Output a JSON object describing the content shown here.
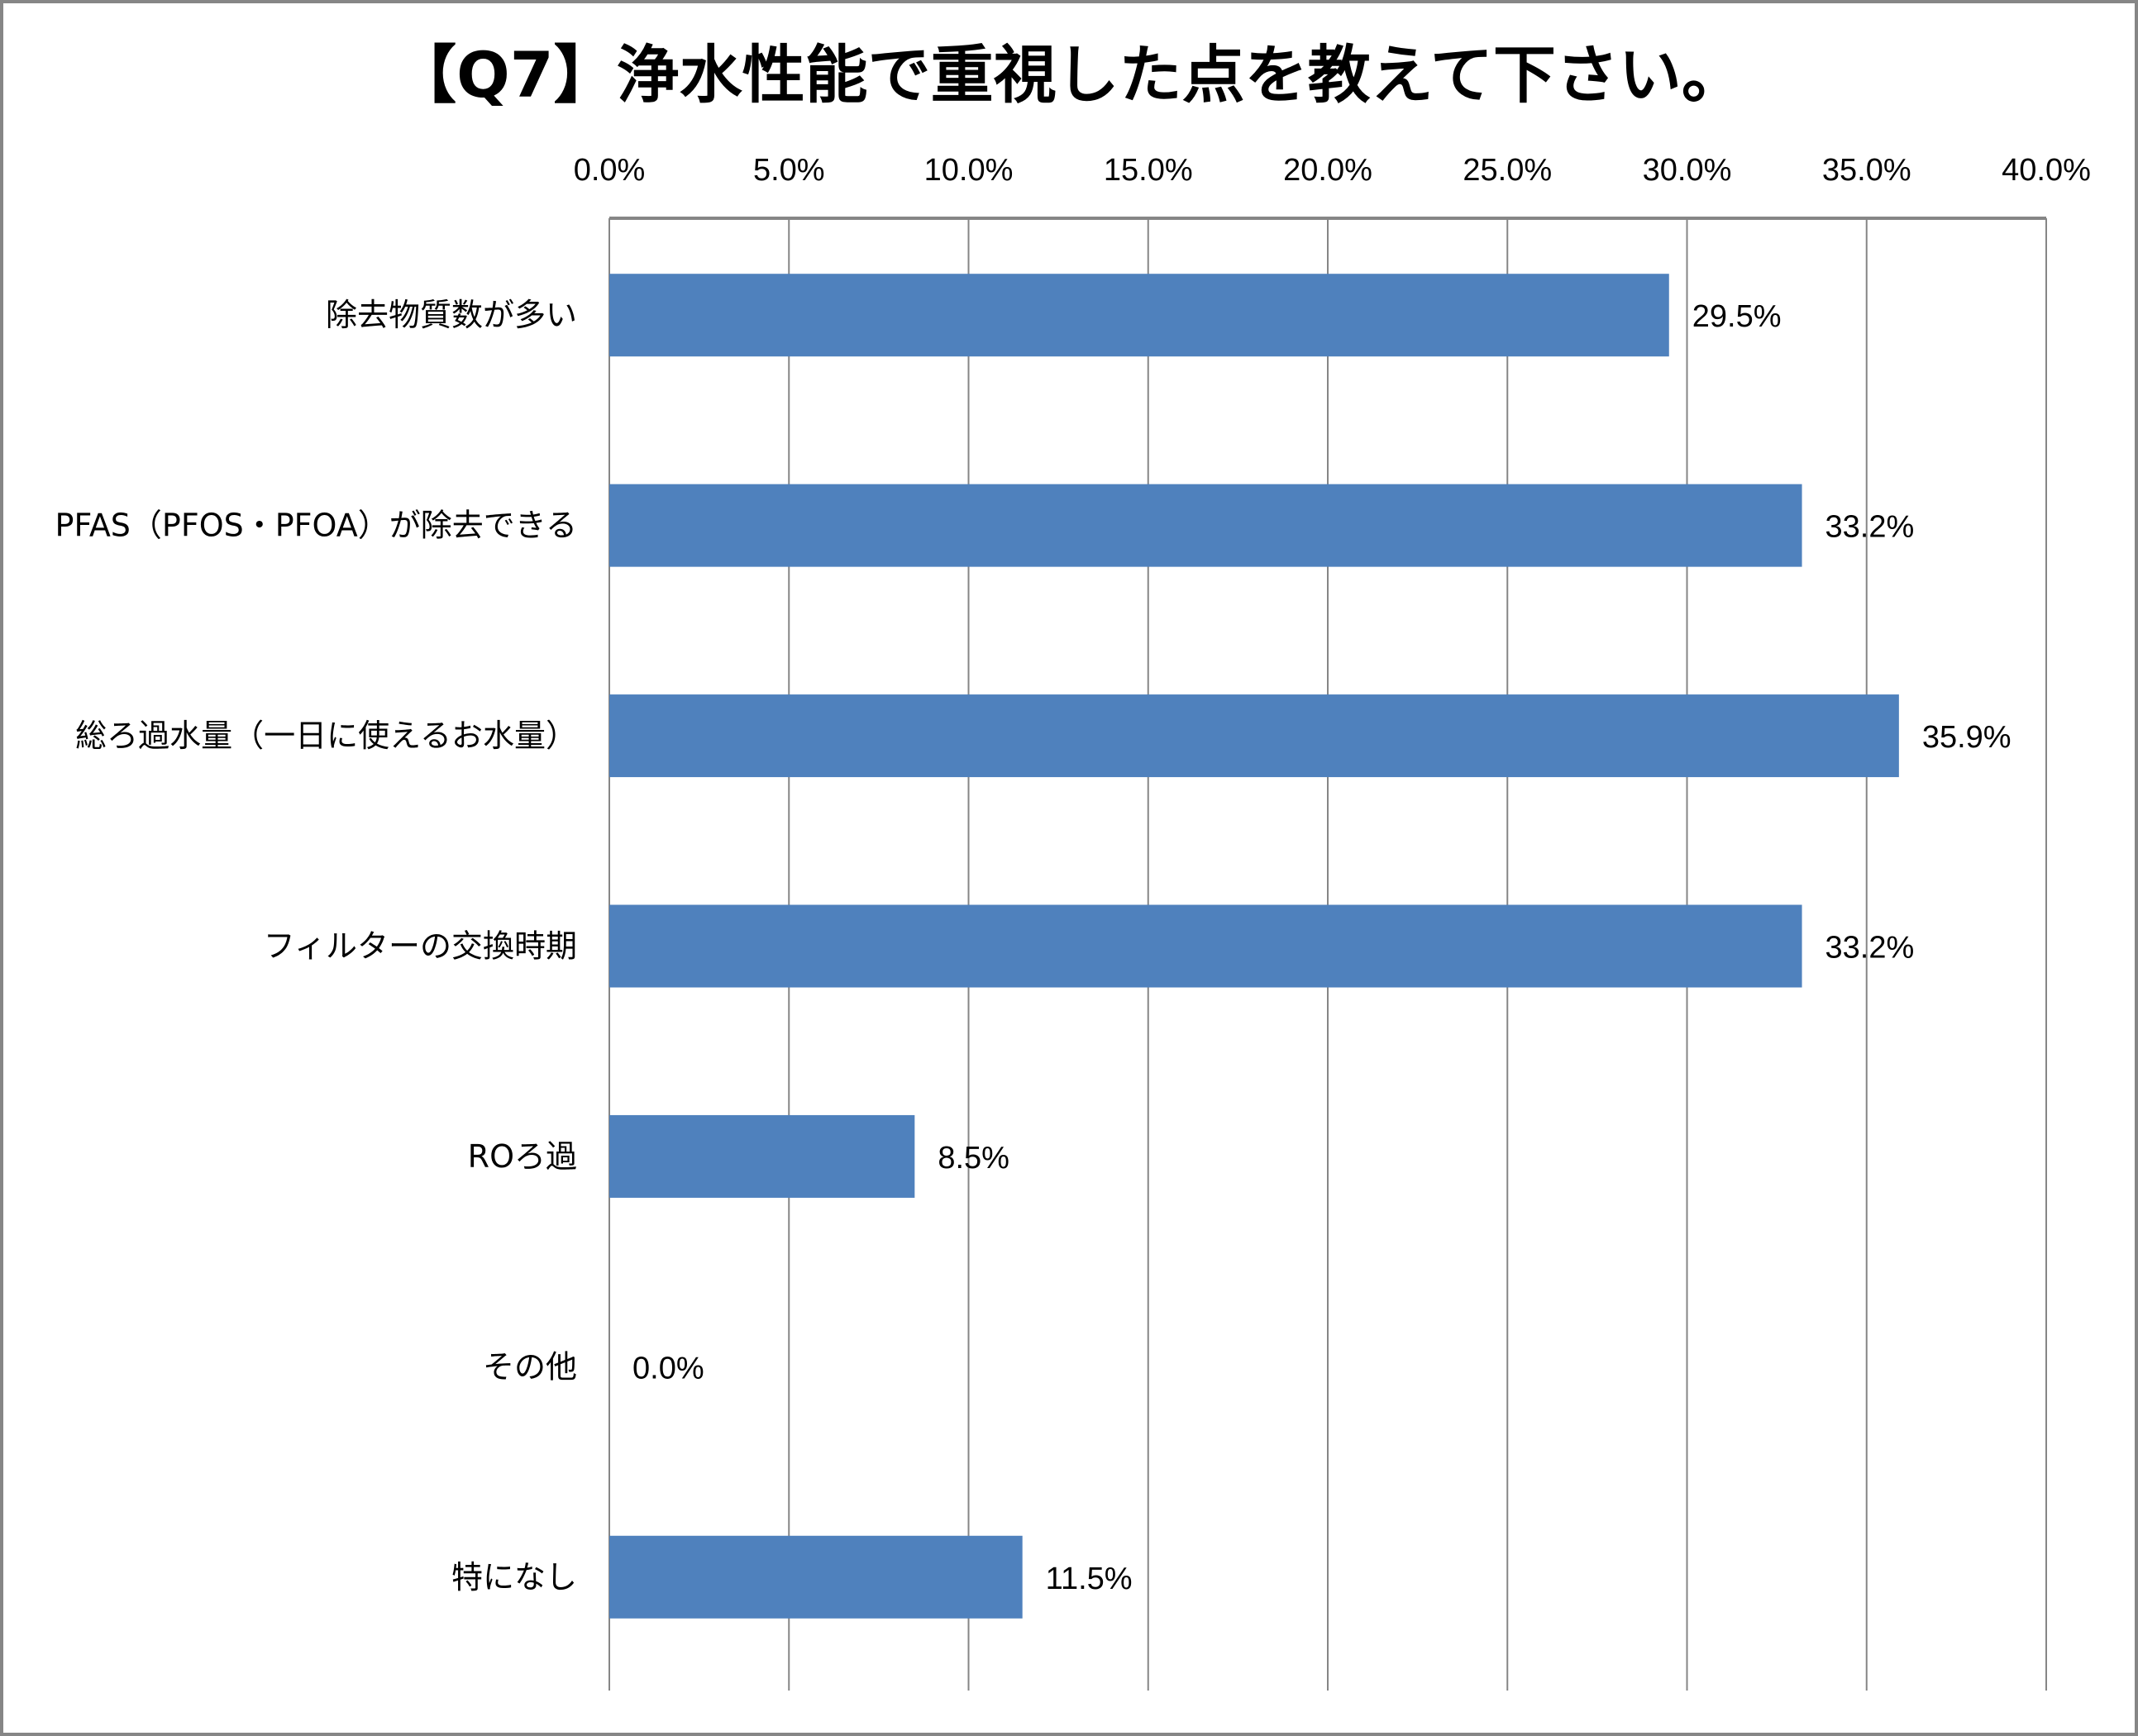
{
  "chart_data": {
    "type": "bar",
    "orientation": "horizontal",
    "title": "【Q7】浄水性能で重視した点を教えて下さい。",
    "xlabel": "",
    "ylabel": "",
    "categories": [
      "除去物質数が多い",
      "PFAS（PFOS・PFOA）が除去できる",
      "総ろ過水量（一日に使えるお水量）",
      "フィルターの交換時期",
      "ROろ過",
      "その他",
      "特になし"
    ],
    "values": [
      29.5,
      33.2,
      35.9,
      33.2,
      8.5,
      0.0,
      11.5
    ],
    "data_labels": [
      "29.5%",
      "33.2%",
      "35.9%",
      "33.2%",
      "8.5%",
      "0.0%",
      "11.5%"
    ],
    "xlim": [
      0,
      40
    ],
    "ticks": [
      0,
      5,
      10,
      15,
      20,
      25,
      30,
      35,
      40
    ],
    "tick_labels": [
      "0.0%",
      "5.0%",
      "10.0%",
      "15.0%",
      "20.0%",
      "25.0%",
      "30.0%",
      "35.0%",
      "40.0%"
    ],
    "axis_position": "top",
    "grid": true,
    "legend": "none",
    "colors": {
      "bar": "#4F81BD",
      "grid": "#868686",
      "border": "#868686"
    }
  }
}
